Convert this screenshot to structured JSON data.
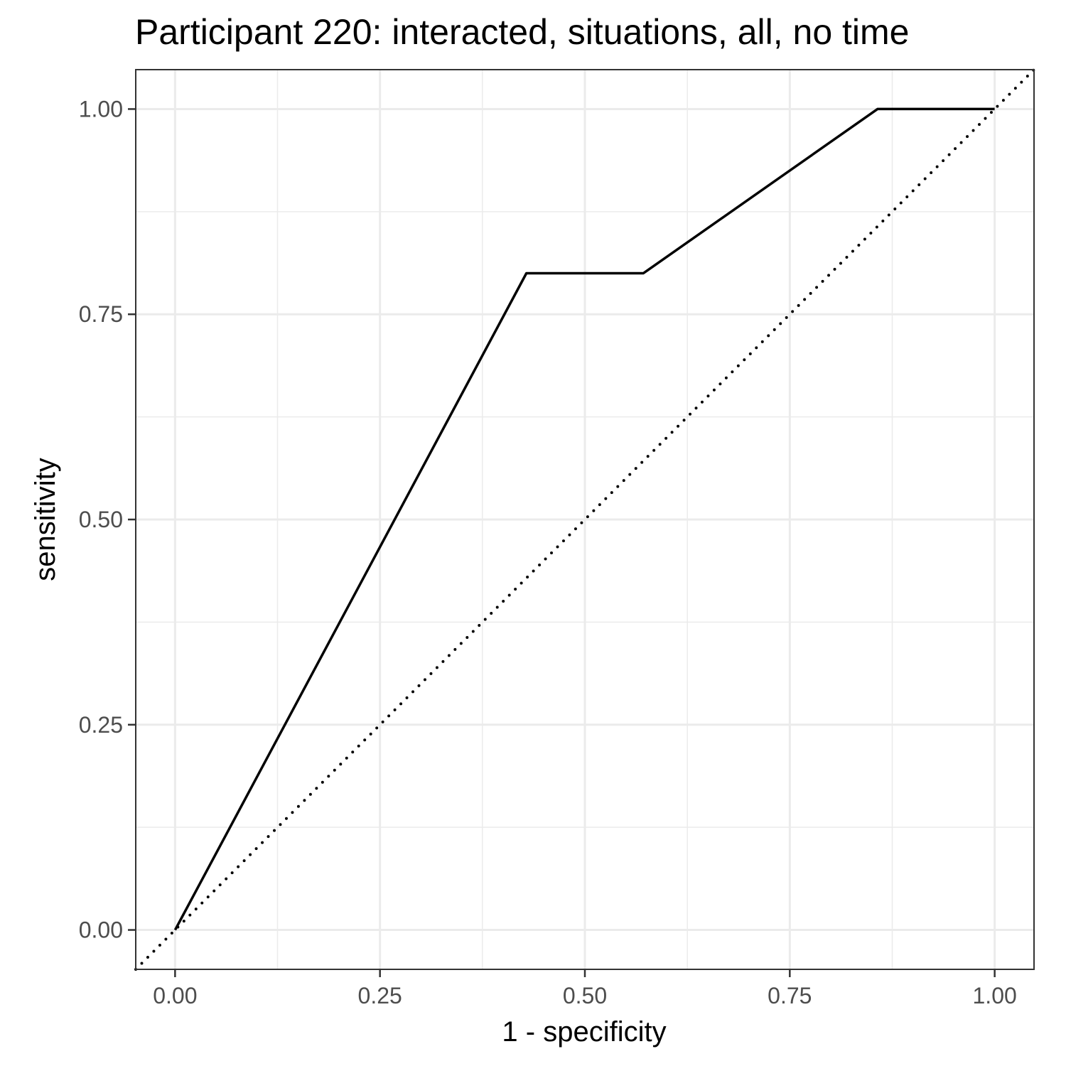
{
  "chart_data": {
    "type": "line",
    "title": "Participant 220: interacted, situations, all, no time",
    "xlabel": "1 - specificity",
    "ylabel": "sensitivity",
    "xlim": [
      -0.048,
      1.048
    ],
    "ylim": [
      -0.048,
      1.048
    ],
    "x_ticks": [
      0,
      0.25,
      0.5,
      0.75,
      1
    ],
    "x_tick_labels": [
      "0.00",
      "0.25",
      "0.50",
      "0.75",
      "1.00"
    ],
    "y_ticks": [
      0,
      0.25,
      0.5,
      0.75,
      1
    ],
    "y_tick_labels": [
      "0.00",
      "0.25",
      "0.50",
      "0.75",
      "1.00"
    ],
    "minor_breaks": [
      0.125,
      0.375,
      0.625,
      0.875
    ],
    "grid": true,
    "legend": "none",
    "series": [
      {
        "style": "solid",
        "color": "#000000",
        "x": [
          0,
          0.4286,
          0.5714,
          0.8571,
          1.0
        ],
        "y": [
          0,
          0.8,
          0.8,
          1.0,
          1.0
        ]
      },
      {
        "style": "dotted",
        "color": "#000000",
        "x": [
          -0.048,
          1.048
        ],
        "y": [
          -0.048,
          1.048
        ]
      }
    ]
  },
  "colors": {
    "grid": "#ebebeb",
    "panel_border": "#333333",
    "tick": "#333333",
    "line": "#000000"
  }
}
